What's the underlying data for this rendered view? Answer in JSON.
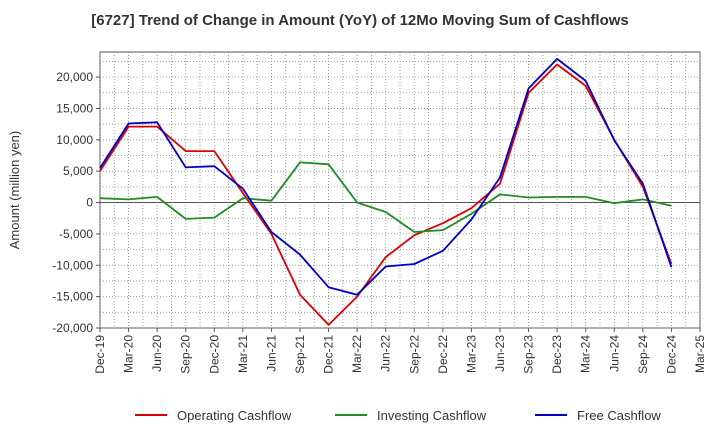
{
  "chart_data": {
    "type": "line",
    "title": "[6727]  Trend of Change in Amount (YoY) of 12Mo Moving Sum of Cashflows",
    "xlabel": "",
    "ylabel": "Amount (million yen)",
    "ylim": [
      -20000,
      24000
    ],
    "yticks": [
      -20000,
      -15000,
      -10000,
      -5000,
      0,
      5000,
      10000,
      15000,
      20000
    ],
    "ytick_labels": [
      "-20,000",
      "-15,000",
      "-10,000",
      "-5,000",
      "0",
      "5,000",
      "10,000",
      "15,000",
      "20,000"
    ],
    "x": [
      "Dec-19",
      "Mar-20",
      "Jun-20",
      "Sep-20",
      "Dec-20",
      "Mar-21",
      "Jun-21",
      "Sep-21",
      "Dec-21",
      "Mar-22",
      "Jun-22",
      "Sep-22",
      "Dec-22",
      "Mar-23",
      "Jun-23",
      "Sep-23",
      "Dec-23",
      "Mar-24",
      "Jun-24",
      "Sep-24",
      "Dec-24",
      "Mar-25"
    ],
    "grid": true,
    "legend_position": "bottom",
    "series": [
      {
        "name": "Operating Cashflow",
        "color": "#dd0000",
        "values": [
          5000,
          12100,
          12100,
          8200,
          8200,
          1500,
          -5000,
          -14700,
          -19500,
          -15000,
          -8700,
          -5200,
          -3300,
          -900,
          3000,
          17500,
          22000,
          18600,
          10000,
          2500,
          -9800,
          null
        ]
      },
      {
        "name": "Investing Cashflow",
        "color": "#228b22",
        "values": [
          700,
          500,
          900,
          -2600,
          -2400,
          700,
          300,
          6400,
          6100,
          0,
          -1500,
          -4700,
          -4400,
          -1800,
          1300,
          800,
          900,
          900,
          -100,
          500,
          -500,
          null
        ]
      },
      {
        "name": "Free Cashflow",
        "color": "#0000cc",
        "values": [
          5500,
          12600,
          12800,
          5600,
          5800,
          2200,
          -4700,
          -8300,
          -13500,
          -14700,
          -10200,
          -9800,
          -7700,
          -2700,
          4000,
          18200,
          22900,
          19400,
          9900,
          3000,
          -10300,
          null
        ]
      }
    ]
  }
}
